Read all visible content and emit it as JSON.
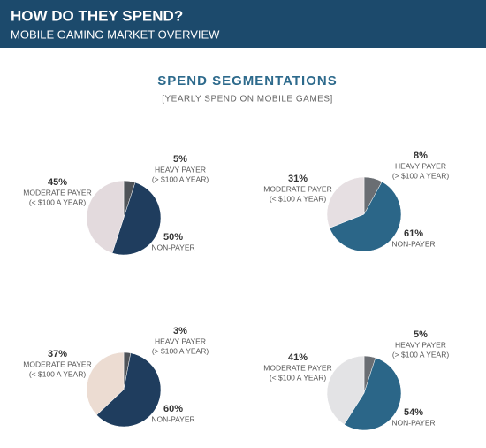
{
  "header": {
    "title": "HOW DO THEY SPEND?",
    "subtitle": "MOBILE GAMING MARKET OVERVIEW"
  },
  "section": {
    "title": "SPEND SEGMENTATIONS",
    "subtitle": "[YEARLY SPEND ON MOBILE GAMES]"
  },
  "chart_data": [
    {
      "type": "pie",
      "categories": [
        "MODERATE PAYER",
        "HEAVY PAYER",
        "NON-PAYER"
      ],
      "descriptions": [
        "(< $100 A YEAR)",
        "(> $100 A YEAR)",
        null
      ],
      "values": [
        45,
        5,
        50
      ],
      "value_labels": [
        "45%",
        "5%",
        "50%"
      ],
      "colors": [
        "#e3dadd",
        "#4f5358",
        "#1f3d5e"
      ]
    },
    {
      "type": "pie",
      "categories": [
        "MODERATE PAYER",
        "HEAVY PAYER",
        "NON-PAYER"
      ],
      "descriptions": [
        "(< $100 A YEAR)",
        "(> $100 A YEAR)",
        null
      ],
      "values": [
        31,
        8,
        61
      ],
      "value_labels": [
        "31%",
        "8%",
        "61%"
      ],
      "colors": [
        "#e6dfe2",
        "#6a6e73",
        "#2b6688"
      ]
    },
    {
      "type": "pie",
      "categories": [
        "MODERATE PAYER",
        "HEAVY PAYER",
        "NON-PAYER"
      ],
      "descriptions": [
        "(< $100 A YEAR)",
        "(> $100 A YEAR)",
        null
      ],
      "values": [
        37,
        3,
        60
      ],
      "value_labels": [
        "37%",
        "3%",
        "60%"
      ],
      "colors": [
        "#ecdcd2",
        "#4f5358",
        "#1f3d5e"
      ]
    },
    {
      "type": "pie",
      "categories": [
        "MODERATE PAYER",
        "HEAVY PAYER",
        "NON-PAYER"
      ],
      "descriptions": [
        "(< $100 A YEAR)",
        "(> $100 A YEAR)",
        null
      ],
      "values": [
        41,
        5,
        54
      ],
      "value_labels": [
        "41%",
        "5%",
        "54%"
      ],
      "colors": [
        "#e3e3e5",
        "#6a6e73",
        "#2b6688"
      ]
    }
  ]
}
